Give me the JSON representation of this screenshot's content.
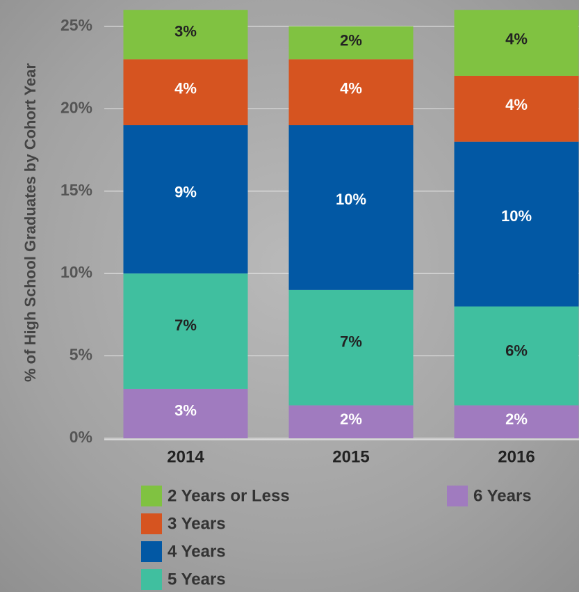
{
  "chart_data": {
    "type": "stacked_bar",
    "y_label": "% of High School Graduates by Cohort Year",
    "categories": [
      "2014",
      "2015",
      "2016"
    ],
    "series": [
      {
        "name": "2 Years or Less",
        "color": "#80c241",
        "label_color": "#222222",
        "values": [
          3,
          2,
          4
        ],
        "value_labels": [
          "3%",
          "2%",
          "4%"
        ]
      },
      {
        "name": "3 Years",
        "color": "#d65420",
        "label_color": "#ffffff",
        "values": [
          4,
          4,
          4
        ],
        "value_labels": [
          "4%",
          "4%",
          "4%"
        ]
      },
      {
        "name": "4 Years",
        "color": "#0258a4",
        "label_color": "#ffffff",
        "values": [
          9,
          10,
          10
        ],
        "value_labels": [
          "9%",
          "10%",
          "10%"
        ]
      },
      {
        "name": "5 Years",
        "color": "#40bf9f",
        "label_color": "#222222",
        "values": [
          7,
          7,
          6
        ],
        "value_labels": [
          "7%",
          "7%",
          "6%"
        ]
      },
      {
        "name": "6 Years",
        "color": "#a07bbf",
        "label_color": "#ffffff",
        "values": [
          3,
          2,
          2
        ],
        "value_labels": [
          "3%",
          "2%",
          "2%"
        ]
      }
    ],
    "ylim": [
      0,
      26.6
    ],
    "yticks": [
      {
        "value": 0,
        "label": "0%"
      },
      {
        "value": 5,
        "label": "5%"
      },
      {
        "value": 10,
        "label": "10%"
      },
      {
        "value": 15,
        "label": "15%"
      },
      {
        "value": 20,
        "label": "20%"
      },
      {
        "value": 25,
        "label": "25%"
      }
    ],
    "grid": true
  }
}
